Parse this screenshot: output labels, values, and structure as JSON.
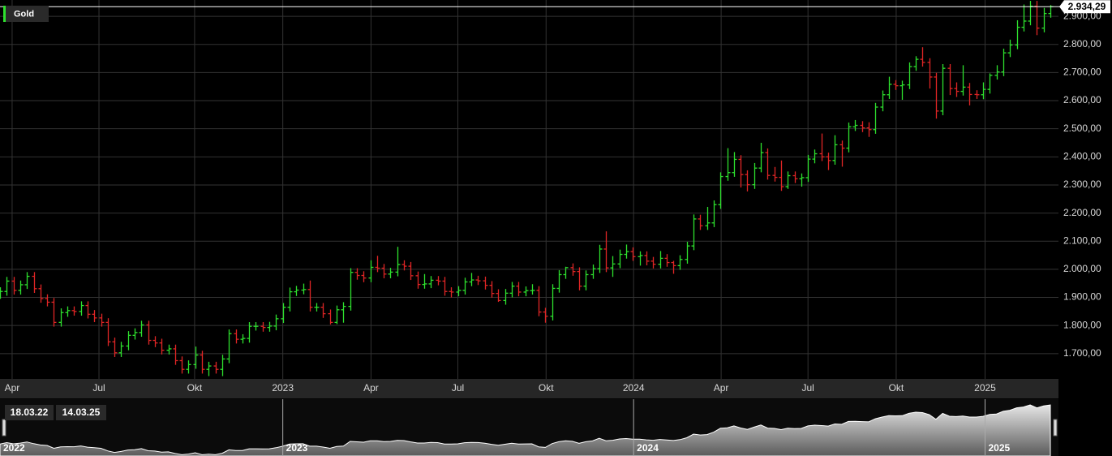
{
  "chart_data": {
    "type": "ohlc",
    "series_name": "Gold",
    "up_color": "#2ee02e",
    "down_color": "#e02525",
    "grid": true,
    "last_price": {
      "value": 2934.29,
      "label": "2.934,29"
    },
    "range_start": "18.03.22",
    "range_end": "14.03.25",
    "navigator_labels": [
      {
        "value": 0,
        "label": "2022"
      },
      {
        "value": 42,
        "label": "2023"
      },
      {
        "value": 94.1,
        "label": "2024"
      },
      {
        "value": 146.3,
        "label": "2025"
      }
    ],
    "xlim": [
      0,
      157.2
    ],
    "xticks": [
      {
        "value": 1.8,
        "label": "Apr"
      },
      {
        "value": 14.7,
        "label": "Jul"
      },
      {
        "value": 28.9,
        "label": "Okt"
      },
      {
        "value": 42,
        "label": "2023"
      },
      {
        "value": 55.1,
        "label": "Apr"
      },
      {
        "value": 68,
        "label": "Jul"
      },
      {
        "value": 81.1,
        "label": "Okt"
      },
      {
        "value": 94.1,
        "label": "2024"
      },
      {
        "value": 107.1,
        "label": "Apr"
      },
      {
        "value": 120,
        "label": "Jul"
      },
      {
        "value": 133.1,
        "label": "Okt"
      },
      {
        "value": 146.3,
        "label": "2025"
      }
    ],
    "ylim": [
      1610,
      2958
    ],
    "yticks": [
      {
        "value": 1700,
        "label": "1.700,00"
      },
      {
        "value": 1800,
        "label": "1.800,00"
      },
      {
        "value": 1900,
        "label": "1.900,00"
      },
      {
        "value": 2000,
        "label": "2.000,00"
      },
      {
        "value": 2100,
        "label": "2.100,00"
      },
      {
        "value": 2200,
        "label": "2.200,00"
      },
      {
        "value": 2300,
        "label": "2.300,00"
      },
      {
        "value": 2400,
        "label": "2.400,00"
      },
      {
        "value": 2500,
        "label": "2.500,00"
      },
      {
        "value": 2600,
        "label": "2.600,00"
      },
      {
        "value": 2700,
        "label": "2.700,00"
      },
      {
        "value": 2800,
        "label": "2.800,00"
      },
      {
        "value": 2900,
        "label": "2.900,00"
      }
    ],
    "ohlc": [
      [
        1910,
        1936,
        1895,
        1921
      ],
      [
        1921,
        1973,
        1906,
        1958
      ],
      [
        1958,
        1973,
        1910,
        1925
      ],
      [
        1925,
        1960,
        1910,
        1945
      ],
      [
        1945,
        1990,
        1930,
        1975
      ],
      [
        1975,
        1990,
        1916,
        1931
      ],
      [
        1931,
        1946,
        1881,
        1896
      ],
      [
        1896,
        1911,
        1868,
        1883
      ],
      [
        1883,
        1898,
        1796,
        1811
      ],
      [
        1811,
        1861,
        1796,
        1846
      ],
      [
        1846,
        1868,
        1831,
        1853
      ],
      [
        1853,
        1868,
        1835,
        1850
      ],
      [
        1850,
        1886,
        1835,
        1871
      ],
      [
        1871,
        1886,
        1825,
        1840
      ],
      [
        1840,
        1855,
        1812,
        1827
      ],
      [
        1827,
        1842,
        1796,
        1811
      ],
      [
        1811,
        1826,
        1727,
        1742
      ],
      [
        1742,
        1757,
        1688,
        1703
      ],
      [
        1703,
        1742,
        1688,
        1727
      ],
      [
        1727,
        1780,
        1712,
        1765
      ],
      [
        1765,
        1790,
        1750,
        1775
      ],
      [
        1775,
        1817,
        1760,
        1802
      ],
      [
        1802,
        1817,
        1732,
        1747
      ],
      [
        1747,
        1762,
        1723,
        1738
      ],
      [
        1738,
        1753,
        1697,
        1712
      ],
      [
        1712,
        1732,
        1697,
        1717
      ],
      [
        1717,
        1732,
        1660,
        1675
      ],
      [
        1675,
        1690,
        1629,
        1644
      ],
      [
        1644,
        1676,
        1629,
        1661
      ],
      [
        1661,
        1725,
        1646,
        1695
      ],
      [
        1695,
        1710,
        1629,
        1644
      ],
      [
        1644,
        1671,
        1620,
        1656
      ],
      [
        1656,
        1671,
        1629,
        1644
      ],
      [
        1644,
        1696,
        1620,
        1681
      ],
      [
        1681,
        1786,
        1666,
        1771
      ],
      [
        1771,
        1786,
        1736,
        1751
      ],
      [
        1751,
        1769,
        1736,
        1754
      ],
      [
        1754,
        1812,
        1739,
        1797
      ],
      [
        1797,
        1812,
        1782,
        1797
      ],
      [
        1797,
        1812,
        1778,
        1793
      ],
      [
        1793,
        1813,
        1778,
        1798
      ],
      [
        1798,
        1839,
        1783,
        1824
      ],
      [
        1824,
        1880,
        1809,
        1865
      ],
      [
        1865,
        1935,
        1850,
        1920
      ],
      [
        1920,
        1941,
        1905,
        1926
      ],
      [
        1926,
        1949,
        1911,
        1928
      ],
      [
        1928,
        1960,
        1850,
        1865
      ],
      [
        1865,
        1880,
        1850,
        1865
      ],
      [
        1865,
        1880,
        1827,
        1842
      ],
      [
        1842,
        1857,
        1804,
        1811
      ],
      [
        1811,
        1871,
        1805,
        1856
      ],
      [
        1856,
        1883,
        1810,
        1868
      ],
      [
        1868,
        2004,
        1853,
        1989
      ],
      [
        1989,
        2004,
        1963,
        1978
      ],
      [
        1978,
        1993,
        1954,
        1969
      ],
      [
        1969,
        2032,
        1954,
        2007
      ],
      [
        2007,
        2048,
        1990,
        2004
      ],
      [
        2004,
        2019,
        1968,
        1983
      ],
      [
        1983,
        2005,
        1968,
        1990
      ],
      [
        1990,
        2080,
        1975,
        2017
      ],
      [
        2017,
        2032,
        1996,
        2011
      ],
      [
        2011,
        2026,
        1962,
        1977
      ],
      [
        1977,
        1992,
        1931,
        1946
      ],
      [
        1946,
        1983,
        1931,
        1948
      ],
      [
        1948,
        1976,
        1933,
        1961
      ],
      [
        1961,
        1976,
        1943,
        1958
      ],
      [
        1958,
        1973,
        1906,
        1921
      ],
      [
        1921,
        1936,
        1900,
        1919
      ],
      [
        1919,
        1940,
        1904,
        1925
      ],
      [
        1925,
        1970,
        1910,
        1955
      ],
      [
        1955,
        1987,
        1940,
        1962
      ],
      [
        1962,
        1977,
        1944,
        1959
      ],
      [
        1959,
        1974,
        1928,
        1943
      ],
      [
        1943,
        1958,
        1899,
        1914
      ],
      [
        1914,
        1929,
        1884,
        1889
      ],
      [
        1889,
        1930,
        1874,
        1915
      ],
      [
        1915,
        1955,
        1900,
        1940
      ],
      [
        1940,
        1955,
        1904,
        1919
      ],
      [
        1919,
        1939,
        1904,
        1924
      ],
      [
        1924,
        1947,
        1910,
        1925
      ],
      [
        1925,
        1940,
        1833,
        1848
      ],
      [
        1848,
        1863,
        1810,
        1833
      ],
      [
        1833,
        1947,
        1818,
        1932
      ],
      [
        1932,
        1997,
        1917,
        1981
      ],
      [
        1981,
        2009,
        1966,
        2006
      ],
      [
        2006,
        2021,
        1977,
        1992
      ],
      [
        1992,
        2007,
        1925,
        1940
      ],
      [
        1940,
        1996,
        1925,
        1981
      ],
      [
        1981,
        2017,
        1966,
        2002
      ],
      [
        2002,
        2087,
        1987,
        2072
      ],
      [
        2072,
        2135,
        1990,
        2005
      ],
      [
        2005,
        2047,
        1973,
        2019
      ],
      [
        2019,
        2070,
        2004,
        2053
      ],
      [
        2053,
        2088,
        2038,
        2063
      ],
      [
        2063,
        2078,
        2030,
        2045
      ],
      [
        2045,
        2064,
        2013,
        2049
      ],
      [
        2049,
        2064,
        2014,
        2029
      ],
      [
        2029,
        2044,
        2003,
        2018
      ],
      [
        2018,
        2065,
        2003,
        2039
      ],
      [
        2039,
        2054,
        2009,
        2024
      ],
      [
        2024,
        2030,
        1984,
        2013
      ],
      [
        2013,
        2050,
        1998,
        2035
      ],
      [
        2035,
        2098,
        2020,
        2083
      ],
      [
        2083,
        2195,
        2068,
        2179
      ],
      [
        2179,
        2194,
        2140,
        2155
      ],
      [
        2155,
        2222,
        2140,
        2165
      ],
      [
        2165,
        2245,
        2150,
        2230
      ],
      [
        2230,
        2345,
        2215,
        2330
      ],
      [
        2330,
        2431,
        2315,
        2344
      ],
      [
        2344,
        2417,
        2329,
        2391
      ],
      [
        2391,
        2406,
        2291,
        2337
      ],
      [
        2337,
        2352,
        2277,
        2301
      ],
      [
        2301,
        2378,
        2286,
        2360
      ],
      [
        2360,
        2450,
        2345,
        2415
      ],
      [
        2415,
        2430,
        2319,
        2334
      ],
      [
        2334,
        2364,
        2312,
        2327
      ],
      [
        2327,
        2387,
        2279,
        2294
      ],
      [
        2294,
        2348,
        2286,
        2333
      ],
      [
        2333,
        2348,
        2307,
        2322
      ],
      [
        2322,
        2341,
        2294,
        2326
      ],
      [
        2326,
        2407,
        2311,
        2392
      ],
      [
        2392,
        2426,
        2377,
        2411
      ],
      [
        2411,
        2483,
        2385,
        2400
      ],
      [
        2400,
        2415,
        2353,
        2387
      ],
      [
        2387,
        2477,
        2372,
        2443
      ],
      [
        2443,
        2458,
        2365,
        2431
      ],
      [
        2431,
        2522,
        2416,
        2507
      ],
      [
        2507,
        2531,
        2492,
        2512
      ],
      [
        2512,
        2527,
        2488,
        2503
      ],
      [
        2503,
        2523,
        2471,
        2497
      ],
      [
        2497,
        2592,
        2482,
        2577
      ],
      [
        2577,
        2636,
        2562,
        2621
      ],
      [
        2621,
        2685,
        2606,
        2658
      ],
      [
        2658,
        2673,
        2638,
        2653
      ],
      [
        2653,
        2671,
        2603,
        2656
      ],
      [
        2656,
        2736,
        2641,
        2721
      ],
      [
        2721,
        2758,
        2706,
        2747
      ],
      [
        2747,
        2790,
        2721,
        2736
      ],
      [
        2736,
        2751,
        2643,
        2684
      ],
      [
        2684,
        2699,
        2536,
        2563
      ],
      [
        2563,
        2730,
        2548,
        2715
      ],
      [
        2715,
        2730,
        2620,
        2643
      ],
      [
        2643,
        2665,
        2613,
        2633
      ],
      [
        2633,
        2726,
        2618,
        2648
      ],
      [
        2648,
        2663,
        2583,
        2622
      ],
      [
        2622,
        2637,
        2606,
        2621
      ],
      [
        2621,
        2665,
        2605,
        2640
      ],
      [
        2640,
        2697,
        2625,
        2690
      ],
      [
        2690,
        2726,
        2675,
        2702
      ],
      [
        2702,
        2785,
        2687,
        2770
      ],
      [
        2770,
        2817,
        2755,
        2798
      ],
      [
        2798,
        2886,
        2783,
        2861
      ],
      [
        2861,
        2942,
        2846,
        2883
      ],
      [
        2883,
        2955,
        2868,
        2936
      ],
      [
        2936,
        2955,
        2833,
        2858
      ],
      [
        2858,
        2930,
        2843,
        2910
      ],
      [
        2910,
        2940,
        2895,
        2934
      ]
    ]
  }
}
